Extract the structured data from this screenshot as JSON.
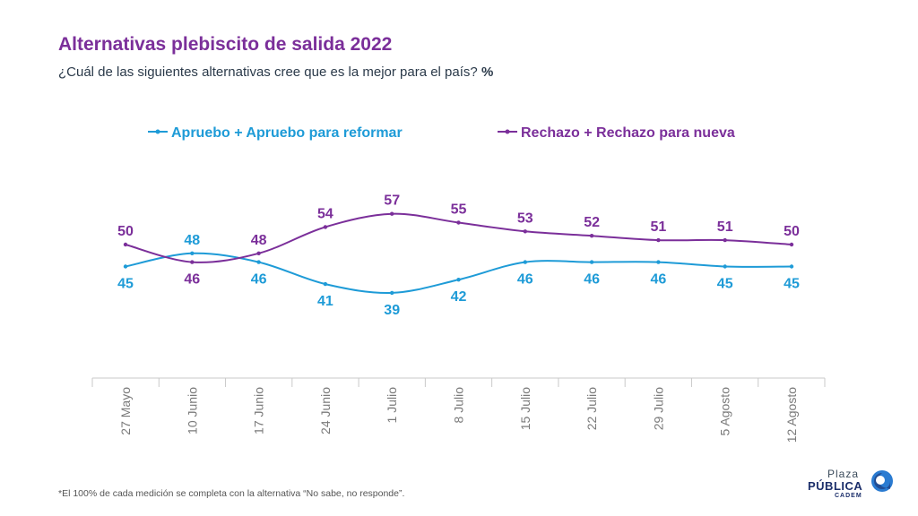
{
  "header": {
    "title": "Alternativas plebiscito de salida 2022",
    "subtitle": "¿Cuál de las siguientes alternativas cree que es la mejor para el país?",
    "subtitle_unit": "%"
  },
  "footnote": "*El 100% de cada medición se completa con la alternativa “No sabe, no responde”.",
  "logo": {
    "line1": "Plaza",
    "line2": "PÚBLICA",
    "line3": "CADEM"
  },
  "colors": {
    "apruebo": "#1e9bd7",
    "rechazo": "#7b2f9a",
    "axis": "#c9c9c9",
    "tick_label": "#7a7a7a"
  },
  "chart_data": {
    "type": "line",
    "categories": [
      "27 Mayo",
      "10 Junio",
      "17 Junio",
      "24 Junio",
      "1 Julio",
      "8 Julio",
      "15 Julio",
      "22 Julio",
      "29 Julio",
      "5 Agosto",
      "12 Agosto"
    ],
    "series": [
      {
        "name": "Apruebo + Apruebo para reformar",
        "color": "#1e9bd7",
        "values": [
          45,
          48,
          46,
          41,
          39,
          42,
          46,
          46,
          46,
          45,
          45
        ]
      },
      {
        "name": "Rechazo + Rechazo para nueva",
        "color": "#7b2f9a",
        "values": [
          50,
          46,
          48,
          54,
          57,
          55,
          53,
          52,
          51,
          51,
          50
        ]
      }
    ],
    "legend_position": "top",
    "grid": false
  }
}
